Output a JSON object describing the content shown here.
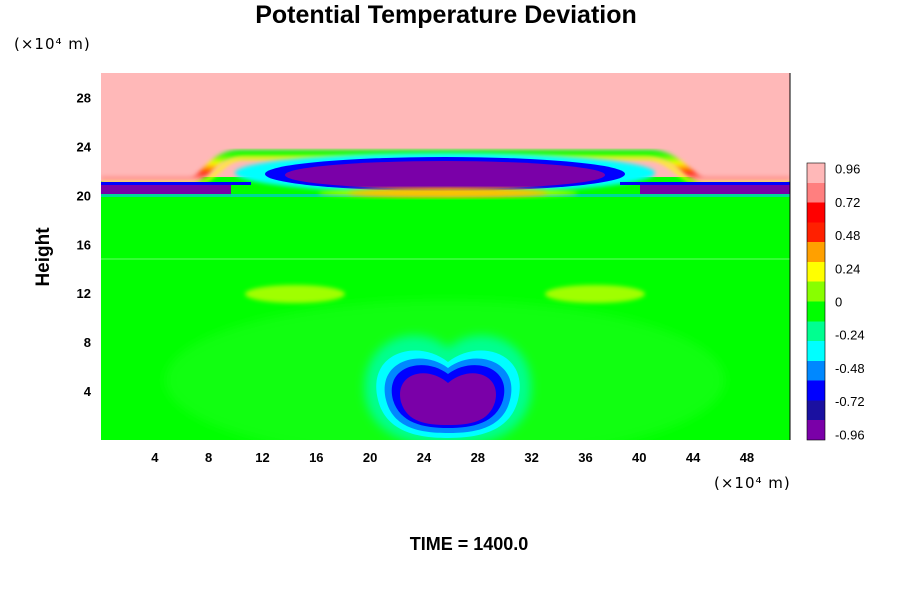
{
  "chart_data": {
    "type": "heatmap",
    "title": "Potential Temperature Deviation",
    "ylabel": "Height",
    "y_unit": "(×10⁴ m)",
    "x_unit": "(×10⁴ m)",
    "xlim": [
      0,
      51.2
    ],
    "ylim": [
      0,
      30
    ],
    "x_ticks": [
      "4",
      "8",
      "12",
      "16",
      "20",
      "24",
      "28",
      "32",
      "36",
      "40",
      "44",
      "48"
    ],
    "y_ticks": [
      "4",
      "8",
      "12",
      "16",
      "20",
      "24",
      "28"
    ],
    "colorbar": {
      "range": [
        -1.0,
        1.0
      ],
      "ticks": [
        "0.96",
        "0.72",
        "0.48",
        "0.24",
        "0",
        "-0.24",
        "-0.48",
        "-0.72",
        "-0.96"
      ],
      "colors": [
        "#7a00a8",
        "#1a10a0",
        "#0000ff",
        "#0088ff",
        "#00ffff",
        "#00ff90",
        "#00ff00",
        "#88ff00",
        "#ffff00",
        "#ffa000",
        "#ff2000",
        "#ff0000",
        "#ff7f7f",
        "#ffb8b8"
      ]
    },
    "features": [
      {
        "name": "upper-layer",
        "value": 1.0,
        "y_range": [
          21,
          30
        ]
      },
      {
        "name": "lower-bubble",
        "value": -0.96,
        "x_center": 25.6,
        "y_center": 4.6
      },
      {
        "name": "upper-inversion-band",
        "value": -0.96,
        "y_center": 21.8
      }
    ],
    "caption": "TIME = 1400.0"
  }
}
